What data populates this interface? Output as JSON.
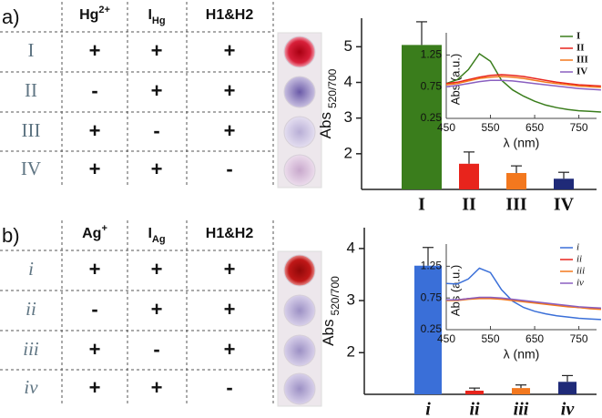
{
  "panels": [
    {
      "label": "a)",
      "table": {
        "header": [
          {
            "text": "Hg",
            "sup": "2+"
          },
          {
            "text": "I",
            "sub": "Hg"
          },
          {
            "text": "H1&H2"
          }
        ],
        "rows": [
          [
            "I",
            "+",
            "+",
            "+"
          ],
          [
            "II",
            "-",
            "+",
            "+"
          ],
          [
            "III",
            "+",
            "-",
            "+"
          ],
          [
            "IV",
            "+",
            "+",
            "-"
          ]
        ]
      }
    },
    {
      "label": "b)",
      "table": {
        "header": [
          {
            "text": "Ag",
            "sup": "+"
          },
          {
            "text": "I",
            "sub": "Ag"
          },
          {
            "text": "H1&H2"
          }
        ],
        "rows": [
          [
            "i",
            "+",
            "+",
            "+"
          ],
          [
            "ii",
            "-",
            "+",
            "+"
          ],
          [
            "iii",
            "+",
            "-",
            "+"
          ],
          [
            "iv",
            "+",
            "+",
            "-"
          ]
        ]
      }
    }
  ],
  "chart_data": [
    {
      "type": "bar",
      "ylabel": {
        "text": "Abs",
        "sub": "520/700"
      },
      "categories": [
        "I",
        "II",
        "III",
        "IV"
      ],
      "values": [
        5.05,
        1.72,
        1.46,
        1.3
      ],
      "errors": [
        0.65,
        0.33,
        0.2,
        0.18
      ],
      "colors": [
        "#3a7d1c",
        "#e8241c",
        "#f3781e",
        "#1f2a78"
      ],
      "ylim": [
        1.0,
        5.8
      ],
      "yticks": [
        2,
        3,
        4,
        5
      ]
    },
    {
      "type": "line",
      "xlabel": "λ (nm)",
      "ylabel": "Abs (a.u.)",
      "legend": "upper right",
      "x": [
        450,
        475,
        500,
        525,
        550,
        575,
        600,
        625,
        650,
        675,
        700,
        725,
        750,
        775,
        800
      ],
      "series": [
        {
          "name": "I",
          "color": "#3a7d1c",
          "values": [
            0.8,
            0.86,
            1.02,
            1.27,
            1.15,
            0.85,
            0.7,
            0.6,
            0.52,
            0.46,
            0.42,
            0.39,
            0.37,
            0.36,
            0.35
          ]
        },
        {
          "name": "II",
          "color": "#e8241c",
          "values": [
            0.8,
            0.82,
            0.86,
            0.9,
            0.93,
            0.94,
            0.93,
            0.91,
            0.88,
            0.85,
            0.82,
            0.8,
            0.78,
            0.77,
            0.76
          ]
        },
        {
          "name": "III",
          "color": "#f3781e",
          "values": [
            0.78,
            0.8,
            0.84,
            0.88,
            0.9,
            0.91,
            0.9,
            0.88,
            0.85,
            0.82,
            0.8,
            0.78,
            0.76,
            0.75,
            0.74
          ]
        },
        {
          "name": "IV",
          "color": "#8a5fc0",
          "values": [
            0.75,
            0.77,
            0.8,
            0.83,
            0.85,
            0.85,
            0.84,
            0.82,
            0.8,
            0.78,
            0.76,
            0.74,
            0.72,
            0.71,
            0.7
          ]
        }
      ],
      "xlim": [
        450,
        790
      ],
      "xticks": [
        450,
        550,
        650,
        750
      ],
      "ylim": [
        0.25,
        1.6
      ],
      "yticks": [
        0.25,
        0.75,
        1.25
      ]
    },
    {
      "type": "bar",
      "ylabel": {
        "text": "Abs",
        "sub": "520/700"
      },
      "categories": [
        "i",
        "ii",
        "iii",
        "iv"
      ],
      "values": [
        3.67,
        1.27,
        1.32,
        1.44
      ],
      "errors": [
        0.35,
        0.05,
        0.06,
        0.12
      ],
      "colors": [
        "#3a6fd8",
        "#e8241c",
        "#f3781e",
        "#1f2a78"
      ],
      "ylim": [
        1.2,
        4.4
      ],
      "yticks": [
        2,
        3,
        4
      ]
    },
    {
      "type": "line",
      "xlabel": "λ (nm)",
      "ylabel": "Abs (a.u.)",
      "legend": "upper right",
      "x": [
        450,
        475,
        500,
        525,
        550,
        575,
        600,
        625,
        650,
        675,
        700,
        725,
        750,
        775,
        800
      ],
      "series": [
        {
          "name": "i",
          "color": "#3a6fd8",
          "values": [
            0.98,
            0.97,
            1.05,
            1.22,
            1.15,
            0.88,
            0.7,
            0.6,
            0.54,
            0.5,
            0.47,
            0.45,
            0.43,
            0.42,
            0.41
          ]
        },
        {
          "name": "ii",
          "color": "#e8241c",
          "values": [
            0.72,
            0.72,
            0.74,
            0.75,
            0.75,
            0.74,
            0.72,
            0.7,
            0.68,
            0.66,
            0.64,
            0.62,
            0.6,
            0.59,
            0.58
          ]
        },
        {
          "name": "iii",
          "color": "#f3781e",
          "values": [
            0.71,
            0.71,
            0.73,
            0.74,
            0.74,
            0.73,
            0.71,
            0.69,
            0.67,
            0.65,
            0.63,
            0.61,
            0.6,
            0.58,
            0.57
          ]
        },
        {
          "name": "iv",
          "color": "#8a5fc0",
          "values": [
            0.72,
            0.72,
            0.74,
            0.76,
            0.76,
            0.75,
            0.73,
            0.71,
            0.69,
            0.67,
            0.65,
            0.63,
            0.61,
            0.6,
            0.59
          ]
        }
      ],
      "xlim": [
        450,
        790
      ],
      "xticks": [
        450,
        550,
        650,
        750
      ],
      "ylim": [
        0.25,
        1.6
      ],
      "yticks": [
        0.25,
        0.75,
        1.25
      ]
    }
  ]
}
